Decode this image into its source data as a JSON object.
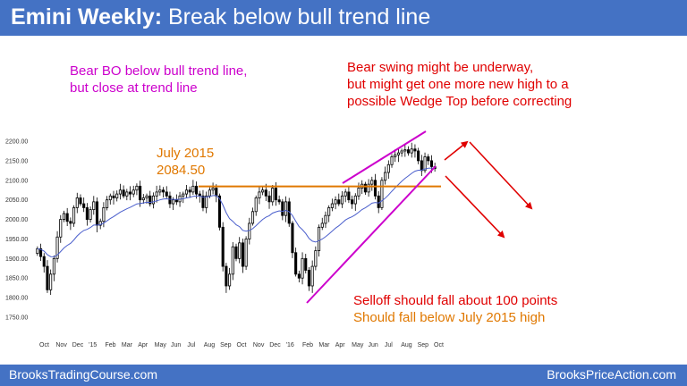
{
  "header": {
    "title_bold": "Emini Weekly:",
    "title_rest": "Break below bull trend line"
  },
  "footer": {
    "left": "BrooksTradingCourse.com",
    "right": "BrooksPriceAction.com"
  },
  "annotations": {
    "bear_bo": [
      "Bear BO below bull trend line,",
      "but close at trend line"
    ],
    "bear_swing": [
      "Bear swing might be underway,",
      "but might get one more new high to a",
      "possible Wedge Top before correcting"
    ],
    "july_2015": [
      "July 2015",
      "2084.50"
    ],
    "selloff": "Selloff should fall about 100 points",
    "below_july": "Should fall below July 2015 high"
  },
  "colors": {
    "accent": "#4472c4",
    "magenta": "#cc00cc",
    "red": "#e00000",
    "orange": "#e07800",
    "candle": "#000000",
    "ma": "#4a5ecc"
  },
  "chart_data": {
    "type": "candlestick",
    "title": "",
    "xlabel": "",
    "ylabel": "",
    "ylim": [
      1740,
      2215
    ],
    "yticks": [
      1750,
      1800,
      1850,
      1900,
      1950,
      2000,
      2050,
      2100,
      2150,
      2200
    ],
    "ytick_labels": [
      "1750.00",
      "1800.00",
      "1850.00",
      "1900.00",
      "1950.00",
      "2000.00",
      "2050.00",
      "2100.00",
      "2150.00",
      "2200.00"
    ],
    "x_labels": [
      "Oct",
      "Nov",
      "Dec",
      "'15",
      "Feb",
      "Mar",
      "Apr",
      "May",
      "Jun",
      "Jul",
      "Aug",
      "Sep",
      "Oct",
      "Nov",
      "Dec",
      "'16",
      "Feb",
      "Mar",
      "Apr",
      "May",
      "Jun",
      "Jul",
      "Aug",
      "Sep",
      "Oct"
    ],
    "july_2015_high": 2084.5,
    "weekly_closes": [
      1925,
      1905,
      1880,
      1820,
      1860,
      1900,
      1955,
      2000,
      2015,
      1995,
      1990,
      2030,
      2055,
      2040,
      2030,
      2000,
      2025,
      2045,
      1985,
      1995,
      2030,
      2050,
      2060,
      2055,
      2065,
      2075,
      2060,
      2070,
      2065,
      2075,
      2085,
      2050,
      2055,
      2060,
      2040,
      2060,
      2070,
      2075,
      2070,
      2060,
      2040,
      2050,
      2045,
      2060,
      2065,
      2075,
      2070,
      2085,
      2065,
      2060,
      2030,
      2060,
      2075,
      2080,
      2060,
      1980,
      1880,
      1830,
      1860,
      1930,
      1900,
      1940,
      1880,
      1950,
      1990,
      2020,
      2055,
      2070,
      2075,
      2060,
      2045,
      2080,
      2050,
      2045,
      2010,
      2045,
      1990,
      1915,
      1860,
      1850,
      1900,
      1870,
      1830,
      1880,
      1920,
      1980,
      1990,
      2010,
      2030,
      2040,
      2050,
      2040,
      2060,
      2070,
      2050,
      2040,
      2060,
      2080,
      2090,
      2070,
      2090,
      2100,
      2060,
      2030,
      2100,
      2120,
      2140,
      2160,
      2165,
      2170,
      2175,
      2178,
      2170,
      2180,
      2175,
      2150,
      2125,
      2160,
      2150,
      2135,
      2130
    ]
  }
}
